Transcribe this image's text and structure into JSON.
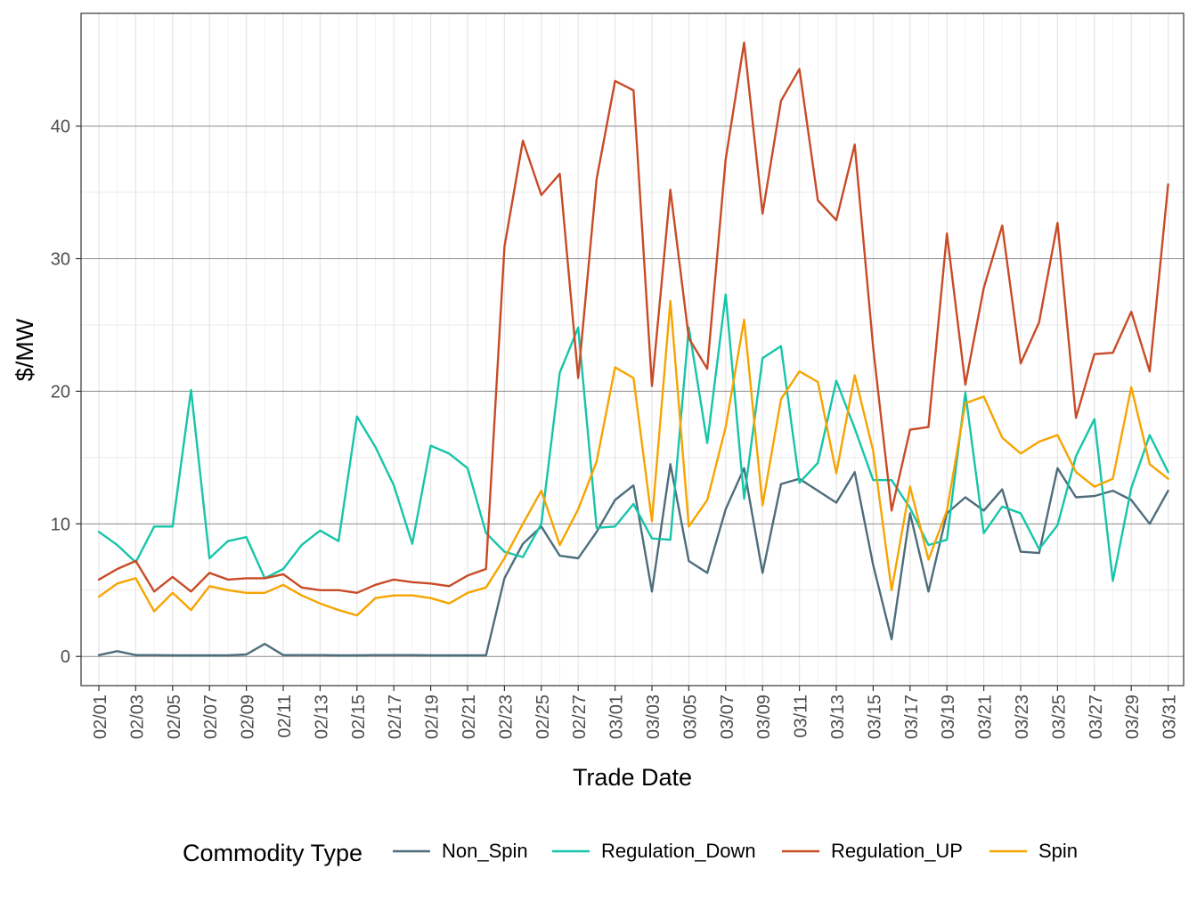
{
  "chart_data": {
    "type": "line",
    "xlabel": "Trade Date",
    "ylabel": "$/MW",
    "ylim": [
      -2.2,
      48.5
    ],
    "yticks": [
      0,
      10,
      20,
      30,
      40
    ],
    "grid": true,
    "legend": {
      "title": "Commodity Type",
      "position": "bottom"
    },
    "x": [
      "02/01",
      "02/02",
      "02/03",
      "02/04",
      "02/05",
      "02/06",
      "02/07",
      "02/08",
      "02/09",
      "02/10",
      "02/11",
      "02/12",
      "02/13",
      "02/14",
      "02/15",
      "02/16",
      "02/17",
      "02/18",
      "02/19",
      "02/20",
      "02/21",
      "02/22",
      "02/23",
      "02/24",
      "02/25",
      "02/26",
      "02/27",
      "02/28",
      "03/01",
      "03/02",
      "03/03",
      "03/04",
      "03/05",
      "03/06",
      "03/07",
      "03/08",
      "03/09",
      "03/10",
      "03/11",
      "03/12",
      "03/13",
      "03/14",
      "03/15",
      "03/16",
      "03/17",
      "03/18",
      "03/19",
      "03/20",
      "03/21",
      "03/22",
      "03/23",
      "03/24",
      "03/25",
      "03/26",
      "03/27",
      "03/28",
      "03/29",
      "03/30",
      "03/31"
    ],
    "x_tick_labels": [
      "02/01",
      "02/03",
      "02/05",
      "02/07",
      "02/09",
      "02/11",
      "02/13",
      "02/15",
      "02/17",
      "02/19",
      "02/21",
      "02/23",
      "02/25",
      "02/27",
      "03/01",
      "03/03",
      "03/05",
      "03/07",
      "03/09",
      "03/11",
      "03/13",
      "03/15",
      "03/17",
      "03/19",
      "03/21",
      "03/23",
      "03/25",
      "03/27",
      "03/29",
      "03/31"
    ],
    "series": [
      {
        "name": "Non_Spin",
        "color": "#4e6d7c",
        "values": [
          0.1,
          0.4,
          0.1,
          0.1,
          0.08,
          0.08,
          0.08,
          0.08,
          0.15,
          0.95,
          0.1,
          0.1,
          0.1,
          0.08,
          0.08,
          0.1,
          0.1,
          0.1,
          0.08,
          0.08,
          0.08,
          0.08,
          5.9,
          8.5,
          9.8,
          7.6,
          7.4,
          9.4,
          11.8,
          12.9,
          4.9,
          14.5,
          7.2,
          6.3,
          11.1,
          14.2,
          6.3,
          13.0,
          13.4,
          12.5,
          11.6,
          13.9,
          6.9,
          1.3,
          10.8,
          4.9,
          10.8,
          12.0,
          11.0,
          12.6,
          7.9,
          7.8,
          14.2,
          12.0,
          12.1,
          12.5,
          11.8,
          10.0,
          12.5
        ]
      },
      {
        "name": "Regulation_Down",
        "color": "#16c5a9",
        "values": [
          9.4,
          8.4,
          7.1,
          9.8,
          9.8,
          20.1,
          7.4,
          8.7,
          9.0,
          5.9,
          6.6,
          8.4,
          9.5,
          8.7,
          18.1,
          15.8,
          12.9,
          8.5,
          15.9,
          15.3,
          14.2,
          9.3,
          7.9,
          7.5,
          10.0,
          21.4,
          24.8,
          9.7,
          9.8,
          11.5,
          8.9,
          8.8,
          24.8,
          16.1,
          27.3,
          11.9,
          22.5,
          23.4,
          13.1,
          14.6,
          20.8,
          17.2,
          13.3,
          13.3,
          11.2,
          8.4,
          8.8,
          19.9,
          9.3,
          11.3,
          10.8,
          8.1,
          9.9,
          15.1,
          17.9,
          5.7,
          12.7,
          16.7,
          13.9
        ]
      },
      {
        "name": "Regulation_UP",
        "color": "#c84b27",
        "values": [
          5.8,
          6.6,
          7.2,
          4.9,
          6.0,
          4.9,
          6.3,
          5.8,
          5.9,
          5.9,
          6.2,
          5.2,
          5.0,
          5.0,
          4.8,
          5.4,
          5.8,
          5.6,
          5.5,
          5.3,
          6.1,
          6.6,
          30.9,
          38.9,
          34.8,
          36.4,
          21.0,
          36.0,
          43.4,
          42.7,
          20.4,
          35.2,
          24.0,
          21.7,
          37.5,
          46.3,
          33.4,
          41.9,
          44.3,
          34.4,
          32.9,
          38.6,
          23.3,
          11.0,
          17.1,
          17.3,
          31.9,
          20.5,
          27.8,
          32.5,
          22.1,
          25.2,
          32.7,
          18.0,
          22.8,
          22.9,
          26.0,
          21.5,
          35.6
        ]
      },
      {
        "name": "Spin",
        "color": "#f6a400",
        "values": [
          4.5,
          5.5,
          5.9,
          3.4,
          4.8,
          3.5,
          5.3,
          5.0,
          4.8,
          4.8,
          5.4,
          4.6,
          4.0,
          3.5,
          3.1,
          4.4,
          4.6,
          4.6,
          4.4,
          4.0,
          4.8,
          5.2,
          7.4,
          10.0,
          12.5,
          8.4,
          11.1,
          14.7,
          21.8,
          21.0,
          10.2,
          26.8,
          9.8,
          11.8,
          17.3,
          25.4,
          11.4,
          19.4,
          21.5,
          20.7,
          13.8,
          21.2,
          15.5,
          5.0,
          12.8,
          7.3,
          11.0,
          19.1,
          19.6,
          16.5,
          15.3,
          16.2,
          16.7,
          13.9,
          12.8,
          13.4,
          20.3,
          14.5,
          13.4
        ]
      }
    ]
  }
}
